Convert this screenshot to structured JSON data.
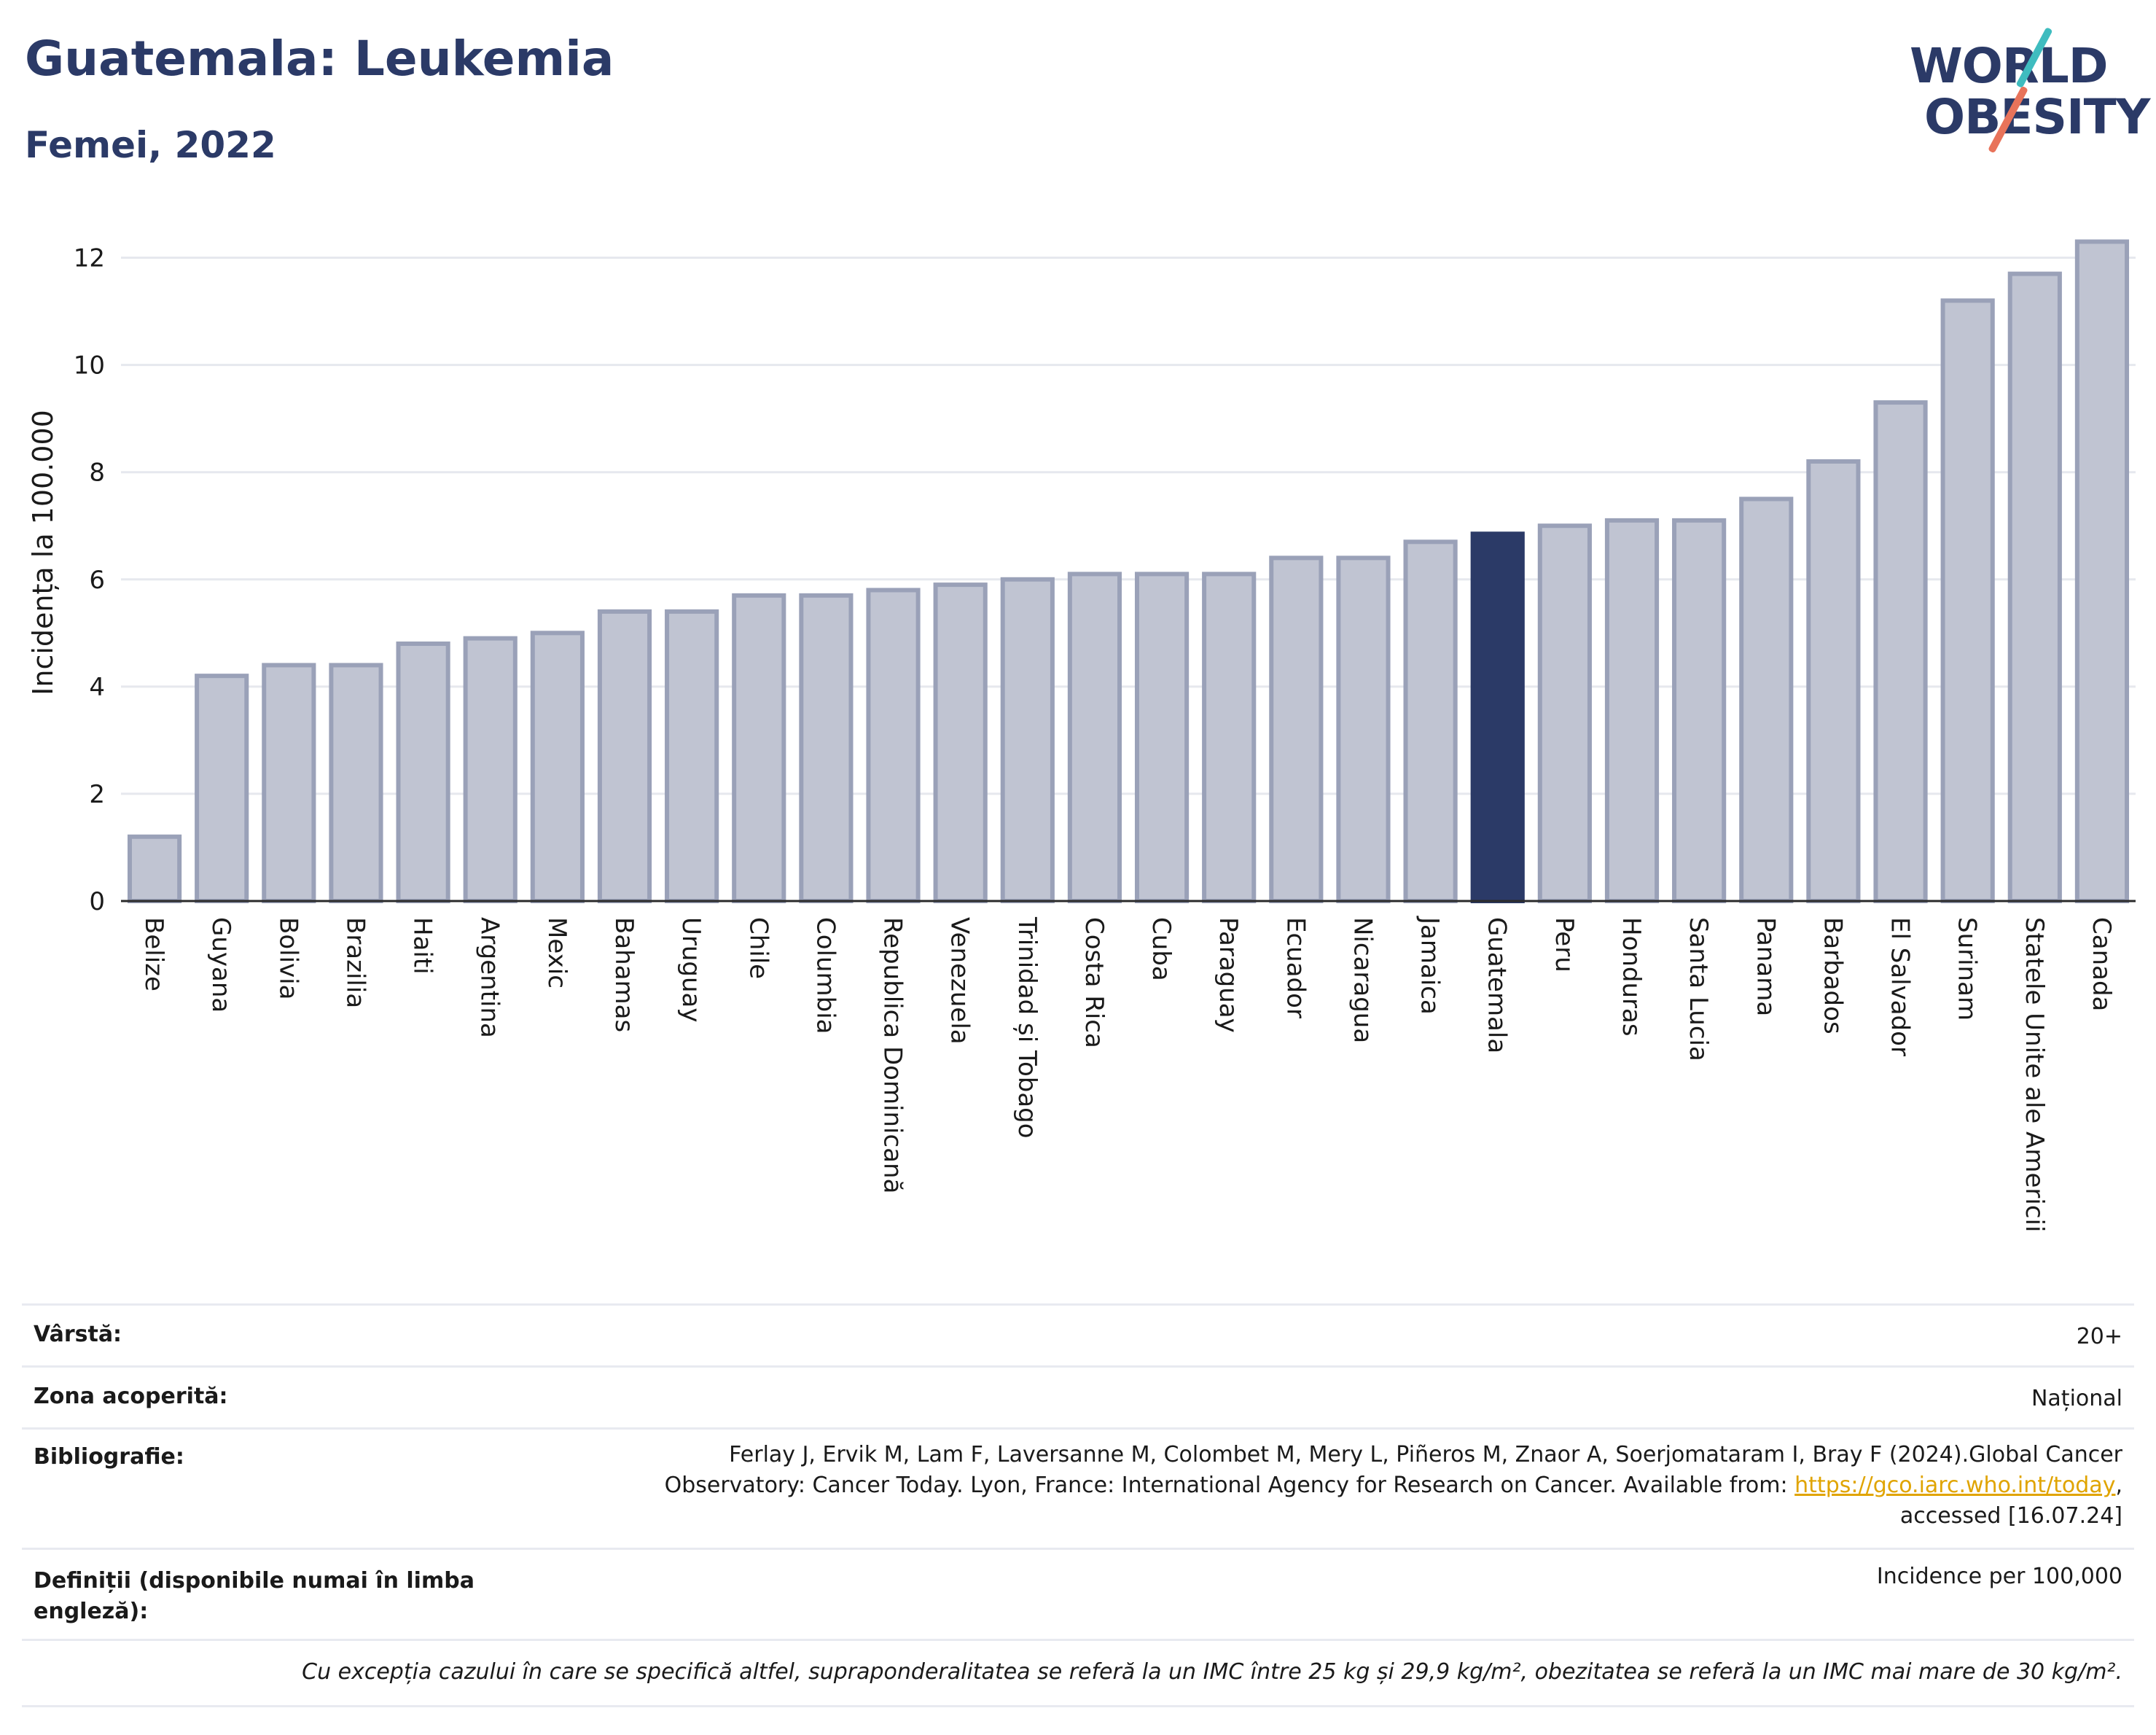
{
  "header": {
    "title": "Guatemala: Leukemia",
    "subtitle": "Femei, 2022"
  },
  "logo": {
    "line1": "WORLD",
    "line2": "OBESITY"
  },
  "colors": {
    "highlight": "#2b3a67",
    "bar": "#c0c4d2",
    "bar_edge": "#9aa1b8",
    "grid": "#e6e8ee",
    "link": "#e0a400"
  },
  "chart_data": {
    "type": "bar",
    "ylabel": "Incidența la 100.000",
    "ylim": [
      0,
      13
    ],
    "yticks": [
      0,
      2,
      4,
      6,
      8,
      10,
      12
    ],
    "grid": true,
    "highlight": "Guatemala",
    "categories": [
      "Belize",
      "Guyana",
      "Bolivia",
      "Brazilia",
      "Haiti",
      "Argentina",
      "Mexic",
      "Bahamas",
      "Uruguay",
      "Chile",
      "Columbia",
      "Republica Dominicană",
      "Venezuela",
      "Trinidad și Tobago",
      "Costa Rica",
      "Cuba",
      "Paraguay",
      "Ecuador",
      "Nicaragua",
      "Jamaica",
      "Guatemala",
      "Peru",
      "Honduras",
      "Santa Lucia",
      "Panama",
      "Barbados",
      "El Salvador",
      "Surinam",
      "Statele Unite ale Americii",
      "Canada"
    ],
    "values": [
      1.2,
      4.2,
      4.4,
      4.4,
      4.8,
      4.9,
      5.0,
      5.4,
      5.4,
      5.7,
      5.7,
      5.8,
      5.9,
      6.0,
      6.1,
      6.1,
      6.1,
      6.4,
      6.4,
      6.7,
      6.85,
      7.0,
      7.1,
      7.1,
      7.5,
      8.2,
      9.3,
      11.2,
      11.7,
      12.3
    ]
  },
  "meta": {
    "age_label": "Vârstă:",
    "age_value": "20+",
    "coverage_label": "Zona acoperită:",
    "coverage_value": "Național",
    "biblio_label": "Bibliografie:",
    "biblio_line1": "Ferlay J, Ervik M, Lam F, Laversanne M, Colombet M, Mery L, Piñeros M, Znaor A, Soerjomataram I, Bray F (2024).Global Cancer",
    "biblio_line2_pre": "Observatory: Cancer Today. Lyon, France: International Agency for Research on Cancer. Available from: ",
    "biblio_link": "https://gco.iarc.who.int/today",
    "biblio_line2_post": ",",
    "biblio_line3": "accessed [16.07.24]",
    "def_label": "Definiții (disponibile numai în limba engleză):",
    "def_value": "Incidence per 100,000",
    "note": "Cu excepția cazului în care se specifică altfel, supraponderalitatea se referă la un IMC între 25 kg și 29,9 kg/m², obezitatea se referă la un IMC mai mare de 30 kg/m²."
  }
}
